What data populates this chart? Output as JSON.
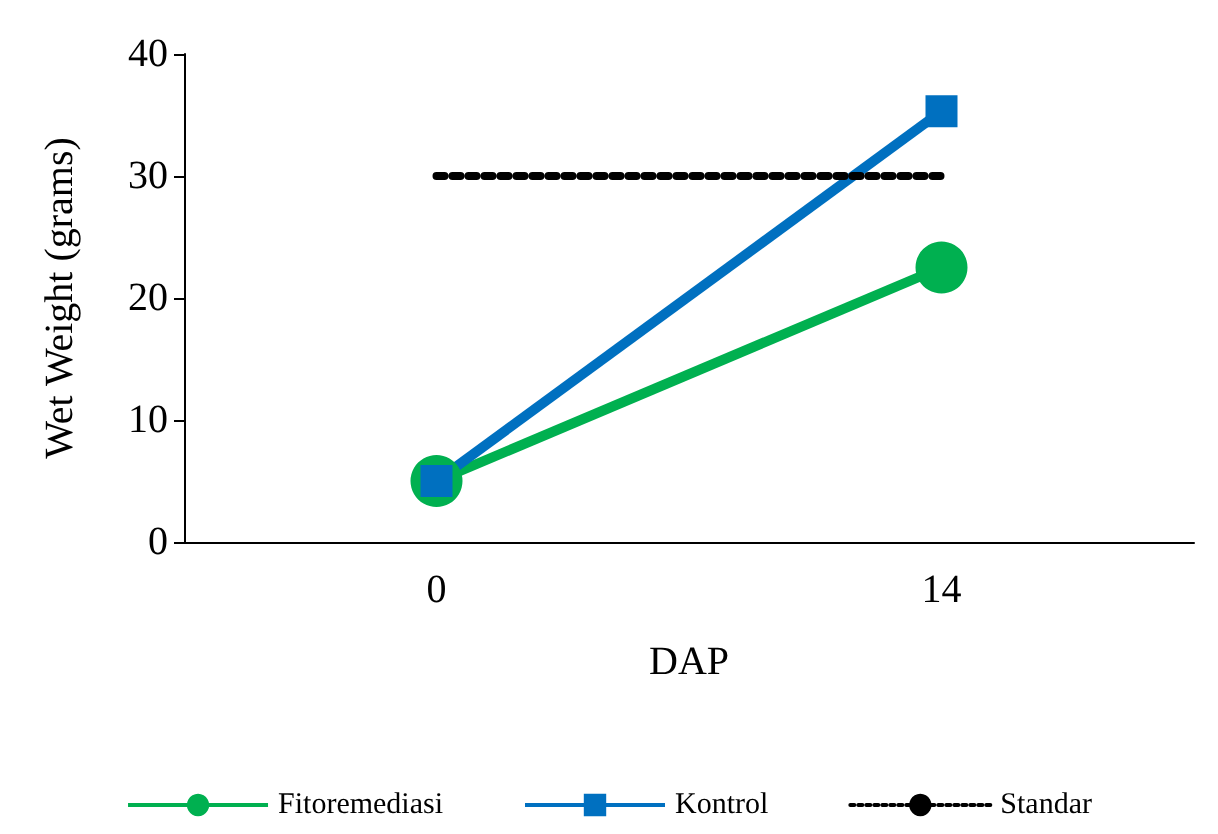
{
  "chart_data": {
    "type": "line",
    "xlabel": "DAP",
    "ylabel": "Wet Weight (grams)",
    "categories": [
      "0",
      "14"
    ],
    "series": [
      {
        "name": "Fitoremediasi",
        "color": "#00b050",
        "values": [
          5,
          22.5
        ],
        "marker": "circle",
        "line_style": "solid"
      },
      {
        "name": "Kontrol",
        "color": "#0070c0",
        "values": [
          5,
          35.3
        ],
        "marker": "square",
        "line_style": "solid"
      },
      {
        "name": "Standar",
        "color": "#000000",
        "values": [
          30,
          30
        ],
        "marker": "none",
        "line_style": "dotted"
      }
    ],
    "ylim": [
      0,
      40
    ],
    "yticks": [
      0,
      10,
      20,
      30,
      40
    ],
    "grid": false,
    "legend": "bottom"
  }
}
